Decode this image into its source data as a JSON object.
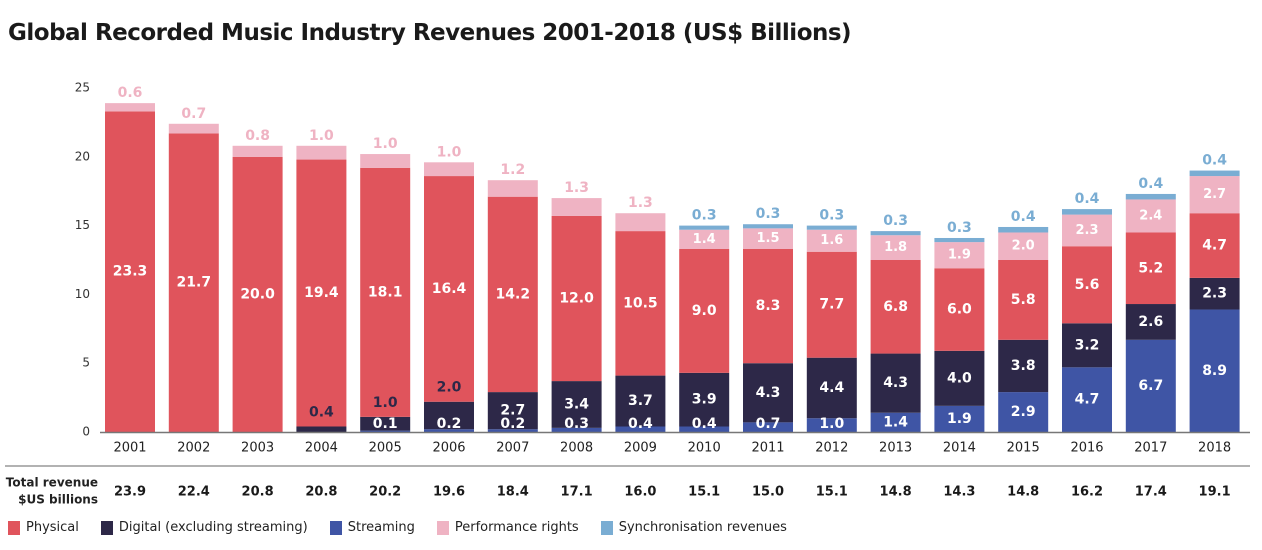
{
  "chart_data": {
    "type": "bar",
    "stacked": true,
    "title": "Global Recorded Music Industry Revenues 2001-2018 (US$ Billions)",
    "categories": [
      "2001",
      "2002",
      "2003",
      "2004",
      "2005",
      "2006",
      "2007",
      "2008",
      "2009",
      "2010",
      "2011",
      "2012",
      "2013",
      "2014",
      "2015",
      "2016",
      "2017",
      "2018"
    ],
    "ylim": [
      0,
      25
    ],
    "yticks": [
      0,
      5,
      10,
      15,
      20,
      25
    ],
    "grid": false,
    "legend_position": "bottom-left",
    "series": [
      {
        "name": "Physical",
        "color": "#e0545c",
        "values": [
          23.3,
          21.7,
          20.0,
          19.4,
          18.1,
          16.4,
          14.2,
          12.0,
          10.5,
          9.0,
          8.3,
          7.7,
          6.8,
          6.0,
          5.8,
          5.6,
          5.2,
          4.7
        ]
      },
      {
        "name": "Digital (excluding streaming)",
        "color": "#2d2848",
        "values": [
          0,
          0,
          0,
          0.4,
          1.0,
          2.0,
          2.7,
          3.4,
          3.7,
          3.9,
          4.3,
          4.4,
          4.3,
          4.0,
          3.8,
          3.2,
          2.6,
          2.3
        ]
      },
      {
        "name": "Streaming",
        "color": "#3f55a5",
        "values": [
          0,
          0,
          0,
          0,
          0.1,
          0.2,
          0.2,
          0.3,
          0.4,
          0.4,
          0.7,
          1.0,
          1.4,
          1.9,
          2.9,
          4.7,
          6.7,
          8.9
        ]
      },
      {
        "name": "Performance rights",
        "color": "#efb3c3",
        "values": [
          0.6,
          0.7,
          0.8,
          1.0,
          1.0,
          1.0,
          1.2,
          1.3,
          1.3,
          1.4,
          1.5,
          1.6,
          1.8,
          1.9,
          2.0,
          2.3,
          2.4,
          2.7
        ]
      },
      {
        "name": "Synchronisation revenues",
        "color": "#7aadd3",
        "values": [
          0,
          0,
          0,
          0,
          0,
          0,
          0,
          0,
          0,
          0.3,
          0.3,
          0.3,
          0.3,
          0.3,
          0.4,
          0.4,
          0.4,
          0.4
        ]
      }
    ],
    "totals_label": [
      "Total revenue",
      "$US billions"
    ],
    "totals": [
      "23.9",
      "22.4",
      "20.8",
      "20.8",
      "20.2",
      "19.6",
      "18.4",
      "17.1",
      "16.0",
      "15.1",
      "15.0",
      "15.1",
      "14.8",
      "14.3",
      "14.8",
      "16.2",
      "17.4",
      "19.1"
    ]
  }
}
